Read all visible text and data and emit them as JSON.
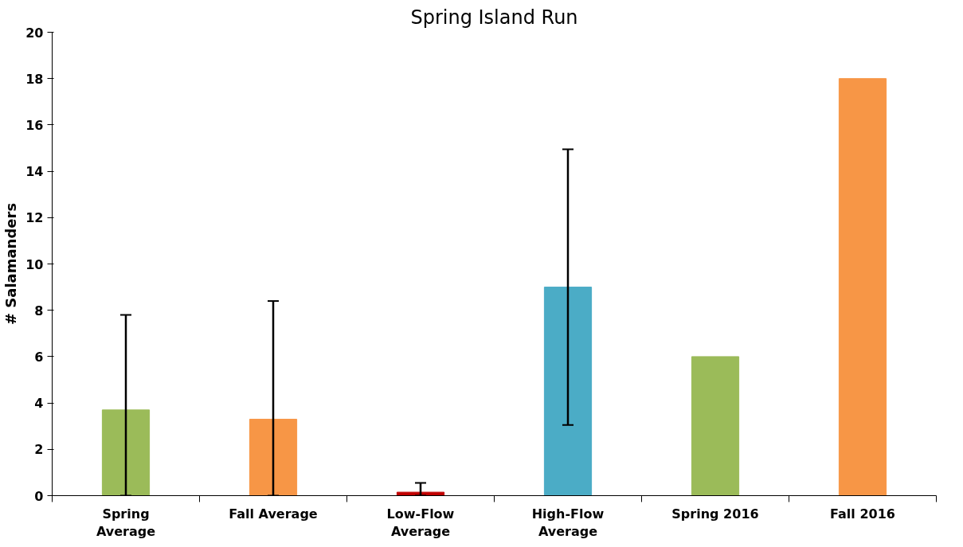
{
  "chart_data": {
    "type": "bar",
    "title": "Spring Island Run",
    "ylabel": "# Salamanders",
    "categories": [
      "Spring Average",
      "Fall Average",
      "Low-Flow Average",
      "High-Flow Average",
      "Spring 2016",
      "Fall 2016"
    ],
    "values": [
      3.7,
      3.3,
      0.15,
      9,
      6,
      18
    ],
    "colors": [
      "#9bbb59",
      "#f79646",
      "#c00000",
      "#4bacc6",
      "#9bbb59",
      "#f79646"
    ],
    "errors": [
      [
        0,
        7.8
      ],
      [
        0,
        8.4
      ],
      [
        0,
        0.55
      ],
      [
        3.05,
        14.95
      ],
      null,
      null
    ],
    "ylim": [
      0,
      20
    ],
    "yticks": [
      0,
      2,
      4,
      6,
      8,
      10,
      12,
      14,
      16,
      18,
      20
    ],
    "grid": false
  }
}
